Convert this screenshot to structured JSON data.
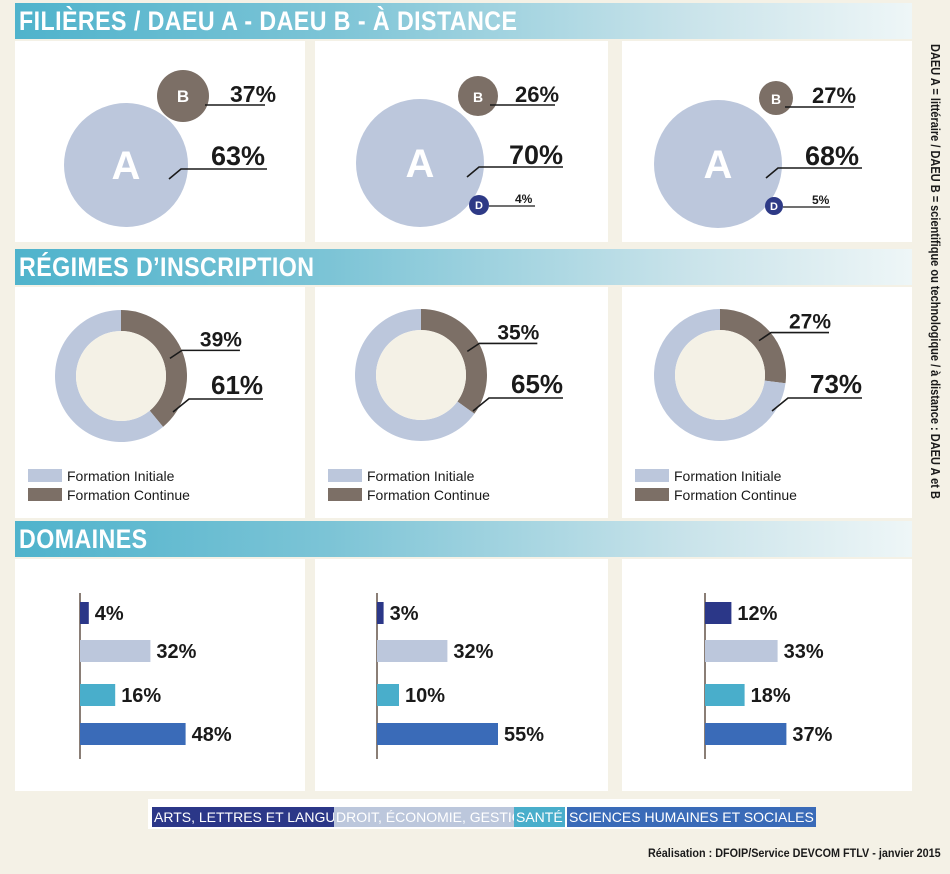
{
  "sections": {
    "filieres": "FILIÈRES / DAEU A - DAEU B - À DISTANCE",
    "regimes": "RÉGIMES D’INSCRIPTION",
    "domaines": "DOMAINES"
  },
  "side_note": "DAEU A = littéraire / DAEU B = scientifique ou technologique / à distance : DAEU A et B",
  "credit": "Réalisation : DFOIP/Service DEVCOM FTLV - janvier 2015",
  "colors": {
    "a": "#bcc7dc",
    "b": "#7c6f66",
    "d": "#2e3a86",
    "initiale": "#bcc7dc",
    "continue": "#7c6f66",
    "arts": "#2b3788",
    "droit": "#bcc7dc",
    "sante": "#49aecb",
    "sciences": "#3a6bb8"
  },
  "chart_data": [
    {
      "type": "bubble",
      "labels": [
        "A",
        "B",
        "D"
      ],
      "charts": [
        {
          "values": [
            63,
            37
          ],
          "value_labels": [
            "63%",
            "37%"
          ]
        },
        {
          "values": [
            70,
            26,
            4
          ],
          "value_labels": [
            "70%",
            "26%",
            "4%"
          ]
        },
        {
          "values": [
            68,
            27,
            5
          ],
          "value_labels": [
            "68%",
            "27%",
            "5%"
          ]
        }
      ]
    },
    {
      "type": "pie",
      "legend": [
        "Formation Initiale",
        "Formation Continue"
      ],
      "charts": [
        {
          "values": [
            61,
            39
          ],
          "value_labels": [
            "61%",
            "39%"
          ]
        },
        {
          "values": [
            65,
            35
          ],
          "value_labels": [
            "65%",
            "35%"
          ]
        },
        {
          "values": [
            73,
            27
          ],
          "value_labels": [
            "73%",
            "27%"
          ]
        }
      ]
    },
    {
      "type": "bar",
      "orientation": "horizontal",
      "categories": [
        "ARTS, LETTRES ET LANGUES",
        "DROIT, ÉCONOMIE, GESTION",
        "SANTÉ",
        "SCIENCES HUMAINES ET SOCIALES"
      ],
      "charts": [
        {
          "values": [
            4,
            32,
            16,
            48
          ],
          "value_labels": [
            "4%",
            "32%",
            "16%",
            "48%"
          ]
        },
        {
          "values": [
            3,
            32,
            10,
            55
          ],
          "value_labels": [
            "3%",
            "32%",
            "10%",
            "55%"
          ]
        },
        {
          "values": [
            12,
            33,
            18,
            37
          ],
          "value_labels": [
            "12%",
            "33%",
            "18%",
            "37%"
          ]
        }
      ]
    }
  ]
}
